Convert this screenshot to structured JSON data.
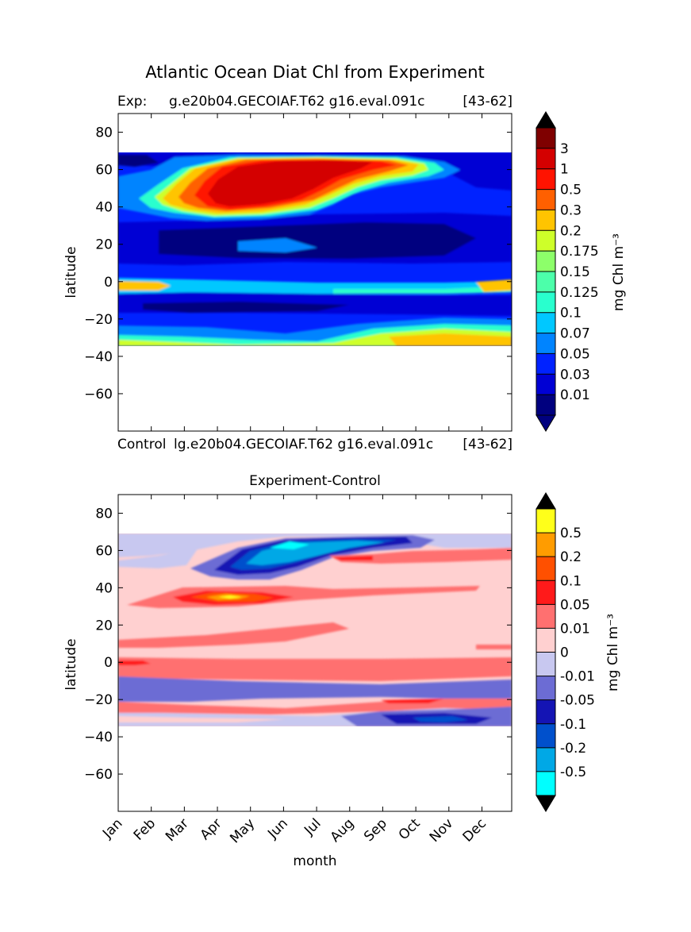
{
  "figure_title": "Atlantic Ocean Diat Chl from Experiment",
  "chart_data": [
    {
      "type": "heatmap",
      "title_left": "Exp:",
      "title_center": "g.e20b04.GECOIAF.T62 g16.eval.091c",
      "title_right": "[43-62]",
      "xlabel": "",
      "ylabel": "latitude",
      "ylim": [
        -80,
        90
      ],
      "yticks": [
        80,
        60,
        40,
        20,
        0,
        -20,
        -40,
        -60
      ],
      "ytick_labels": [
        "80",
        "60",
        "40",
        "20",
        "0",
        "−20",
        "−40",
        "−60"
      ],
      "data_lat_range": [
        -34,
        69
      ],
      "colorbar_label": "mg Chl m⁻³",
      "levels": [
        "0.01",
        "0.03",
        "0.05",
        "0.07",
        "0.1",
        "0.125",
        "0.15",
        "0.175",
        "0.2",
        "0.3",
        "0.5",
        "1",
        "3"
      ],
      "colors": [
        "#00007f",
        "#0000d4",
        "#0022ff",
        "#0084ff",
        "#00c8ff",
        "#29ffce",
        "#4cffaa",
        "#8dff6a",
        "#ceff29",
        "#ffc400",
        "#ff6000",
        "#ff1300",
        "#d40000",
        "#7f0000"
      ],
      "extend_low_color": "#00007f",
      "extend_high_color": "#000000",
      "features": [
        {
          "lat": 50,
          "months": [
            3,
            8
          ],
          "level": "1"
        },
        {
          "lat": 45,
          "months": [
            1,
            6
          ],
          "level": "0.3"
        },
        {
          "lat": 42,
          "months": [
            0,
            2
          ],
          "level": "0.2"
        },
        {
          "lat": 0,
          "months": [
            0,
            11
          ],
          "level": "0.1"
        },
        {
          "lat": -30,
          "months": [
            7,
            11
          ],
          "level": "0.3"
        }
      ]
    },
    {
      "type": "heatmap",
      "title_left": "Control",
      "title_center": "lg.e20b04.GECOIAF.T62 g16.eval.091c",
      "title_right": "[43-62]",
      "title": "Experiment-Control",
      "xlabel": "month",
      "ylabel": "latitude",
      "ylim": [
        -80,
        90
      ],
      "yticks": [
        80,
        60,
        40,
        20,
        0,
        -20,
        -40,
        -60
      ],
      "ytick_labels": [
        "80",
        "60",
        "40",
        "20",
        "0",
        "−20",
        "−40",
        "−60"
      ],
      "months": [
        "Jan",
        "Feb",
        "Mar",
        "Apr",
        "May",
        "Jun",
        "Jul",
        "Aug",
        "Sep",
        "Oct",
        "Nov",
        "Dec"
      ],
      "data_lat_range": [
        -34,
        69
      ],
      "colorbar_label": "mg Chl m⁻³",
      "levels": [
        "-0.5",
        "-0.2",
        "-0.1",
        "-0.05",
        "-0.01",
        "0",
        "0.01",
        "0.05",
        "0.1",
        "0.2",
        "0.5"
      ],
      "colors": [
        "#00ffff",
        "#00a8e6",
        "#0050cc",
        "#1414b4",
        "#6c6cd4",
        "#c8c8f0",
        "#ffd0d0",
        "#ff7070",
        "#ff1a1a",
        "#ff5000",
        "#ff9c00",
        "#ffff1a"
      ],
      "extend_low_color": "#000000",
      "extend_high_color": "#000000",
      "features": [
        {
          "lat": 62,
          "months": [
            3,
            8
          ],
          "level": "-0.2"
        },
        {
          "lat": 34,
          "months": [
            2,
            4
          ],
          "level": "0.1"
        },
        {
          "lat": 0,
          "months": [
            0,
            11
          ],
          "level": "0.01"
        },
        {
          "lat": -30,
          "months": [
            6,
            11
          ],
          "level": "-0.1"
        }
      ]
    }
  ]
}
